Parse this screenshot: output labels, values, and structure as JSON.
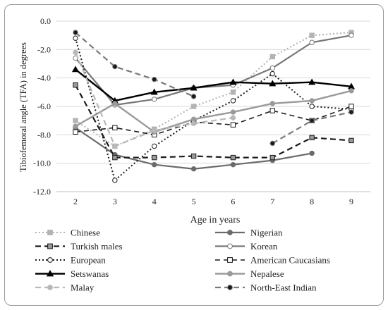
{
  "chart_data": {
    "type": "line",
    "xlabel": "Age in years",
    "ylabel": "Tibiofemoral angle (TFA) in degrees",
    "x": [
      2,
      3,
      4,
      5,
      6,
      7,
      8,
      9
    ],
    "ylim": [
      -12,
      0
    ],
    "yticks": [
      "0.0",
      "-2.0",
      "-4.0",
      "-6.0",
      "-8.0",
      "-10.0",
      "-12.0"
    ],
    "ytick_values": [
      0,
      -2,
      -4,
      -6,
      -8,
      -10,
      -12
    ],
    "legend_position": "bottom",
    "series": [
      {
        "name": "Chinese",
        "values": [
          -7.0,
          -8.8,
          -7.6,
          -6.0,
          -5.0,
          -2.5,
          -1.0,
          -0.8
        ],
        "color": "#b3b3b3",
        "dash": "2,3",
        "width": 2,
        "marker": "square",
        "marker_fill": "#b3b3b3"
      },
      {
        "name": "Nigerian",
        "values": [
          -7.5,
          -9.4,
          -10.1,
          -10.4,
          -10.1,
          -9.8,
          -9.3,
          null
        ],
        "color": "#6b6b6b",
        "dash": "",
        "width": 2.2,
        "marker": "circle",
        "marker_fill": "#6b6b6b"
      },
      {
        "name": "Turkish males",
        "values": [
          -4.5,
          -9.6,
          -9.6,
          -9.5,
          -9.6,
          -9.6,
          -8.2,
          -8.4
        ],
        "color": "#1a1a1a",
        "dash": "8,5",
        "width": 2.2,
        "marker": "square",
        "marker_fill": "#9a9a9a"
      },
      {
        "name": "Korean",
        "values": [
          -2.6,
          -5.9,
          -5.5,
          -4.7,
          -4.5,
          -3.3,
          -1.5,
          -1.0
        ],
        "color": "#777777",
        "dash": "",
        "width": 2.2,
        "marker": "circle",
        "marker_fill": "#ffffff"
      },
      {
        "name": "European",
        "values": [
          -1.2,
          -11.2,
          -8.8,
          -7.0,
          -5.6,
          -3.7,
          -6.0,
          -6.2
        ],
        "color": "#1a1a1a",
        "dash": "2,3",
        "width": 2,
        "marker": "circle",
        "marker_fill": "#ffffff"
      },
      {
        "name": "American Caucasians",
        "values": [
          -7.8,
          -7.5,
          -8.0,
          -7.1,
          -7.3,
          -6.3,
          -7.0,
          -6.0
        ],
        "color": "#1a1a1a",
        "dash": "7,5",
        "width": 1.6,
        "marker": "square",
        "marker_fill": "#ffffff"
      },
      {
        "name": "Setswanas",
        "values": [
          -3.4,
          -5.6,
          -5.0,
          -4.7,
          -4.3,
          -4.4,
          -4.3,
          -4.6
        ],
        "color": "#000000",
        "dash": "",
        "width": 2.4,
        "marker": "triangle",
        "marker_fill": "#000000"
      },
      {
        "name": "Nepalese",
        "values": [
          -7.4,
          -5.8,
          -7.8,
          -6.9,
          -6.4,
          -5.8,
          -5.6,
          -4.9
        ],
        "color": "#9a9a9a",
        "dash": "",
        "width": 2.4,
        "marker": "circle",
        "marker_fill": "#9a9a9a"
      },
      {
        "name": "Malay",
        "values": [
          -2.2,
          -8.8,
          -7.7,
          -7.2,
          -6.8,
          null,
          null,
          null
        ],
        "color": "#b8b8b8",
        "dash": "8,5",
        "width": 2.2,
        "marker": "circle",
        "marker_fill": "#b8b8b8"
      },
      {
        "name": "North-East Indian",
        "values": [
          -0.8,
          -3.2,
          -4.1,
          -5.3,
          null,
          -8.6,
          -7.0,
          -6.4
        ],
        "color": "#7a7a7a",
        "dash": "8,5",
        "width": 2.2,
        "marker": "circle",
        "marker_fill": "#1a1a1a"
      }
    ]
  }
}
